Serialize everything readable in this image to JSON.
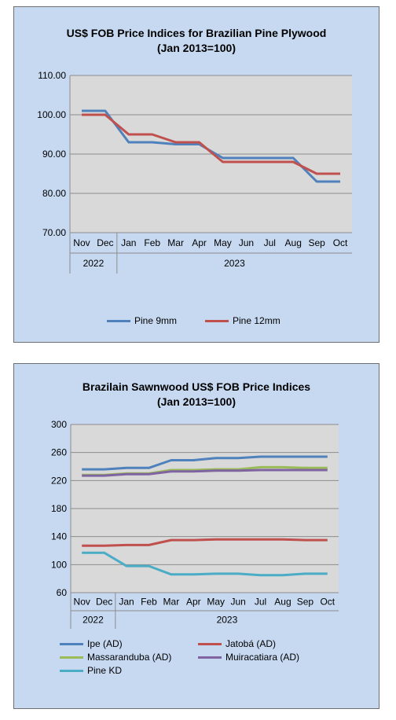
{
  "chart_data": [
    {
      "type": "line",
      "title": "US$ FOB Price Indices for Brazilian  Pine Plywood",
      "subtitle": "(Jan 2013=100)",
      "categories": [
        "Nov",
        "Dec",
        "Jan",
        "Feb",
        "Mar",
        "Apr",
        "May",
        "Jun",
        "Jul",
        "Aug",
        "Sep",
        "Oct"
      ],
      "year_groups": [
        {
          "label": "2022",
          "count": 2
        },
        {
          "label": "2023",
          "count": 10
        }
      ],
      "ylim": [
        70,
        110
      ],
      "yticks": [
        "70.00",
        "80.00",
        "90.00",
        "100.00",
        "110.00"
      ],
      "grid": true,
      "legend_position": "bottom",
      "series": [
        {
          "name": "Pine 9mm",
          "color": "#4f81bd",
          "values": [
            101,
            101,
            93,
            93,
            92.5,
            92.5,
            89,
            89,
            89,
            89,
            83,
            83
          ]
        },
        {
          "name": "Pine 12mm",
          "color": "#c0504d",
          "values": [
            100,
            100,
            95,
            95,
            93,
            93,
            88,
            88,
            88,
            88,
            85,
            85
          ]
        }
      ]
    },
    {
      "type": "line",
      "title": "Brazilain Sawnwood US$ FOB Price Indices",
      "subtitle": "(Jan 2013=100)",
      "categories": [
        "Nov",
        "Dec",
        "Jan",
        "Feb",
        "Mar",
        "Apr",
        "May",
        "Jun",
        "Jul",
        "Aug",
        "Sep",
        "Oct"
      ],
      "year_groups": [
        {
          "label": "2022",
          "count": 2
        },
        {
          "label": "2023",
          "count": 10
        }
      ],
      "ylim": [
        60,
        300
      ],
      "yticks": [
        "60",
        "100",
        "140",
        "180",
        "220",
        "260",
        "300"
      ],
      "grid": true,
      "legend_position": "bottom",
      "series": [
        {
          "name": "Ipe (AD)",
          "color": "#4f81bd",
          "values": [
            236,
            236,
            238,
            238,
            249,
            249,
            252,
            252,
            254,
            254,
            254,
            254
          ]
        },
        {
          "name": "Jatobá (AD)",
          "color": "#c0504d",
          "values": [
            127,
            127,
            128,
            128,
            135,
            135,
            136,
            136,
            136,
            136,
            135,
            135
          ]
        },
        {
          "name": "Massaranduba (AD)",
          "color": "#9bbb59",
          "values": [
            228,
            228,
            230,
            230,
            235,
            235,
            236,
            236,
            239,
            239,
            238,
            238
          ]
        },
        {
          "name": "Muiracatiara (AD)",
          "color": "#8064a2",
          "values": [
            227,
            227,
            229,
            229,
            233,
            233,
            234,
            234,
            235,
            235,
            235,
            235
          ]
        },
        {
          "name": "Pine KD",
          "color": "#4bacc6",
          "values": [
            117,
            117,
            98,
            98,
            86,
            86,
            87,
            87,
            85,
            85,
            87,
            87
          ]
        }
      ]
    }
  ]
}
